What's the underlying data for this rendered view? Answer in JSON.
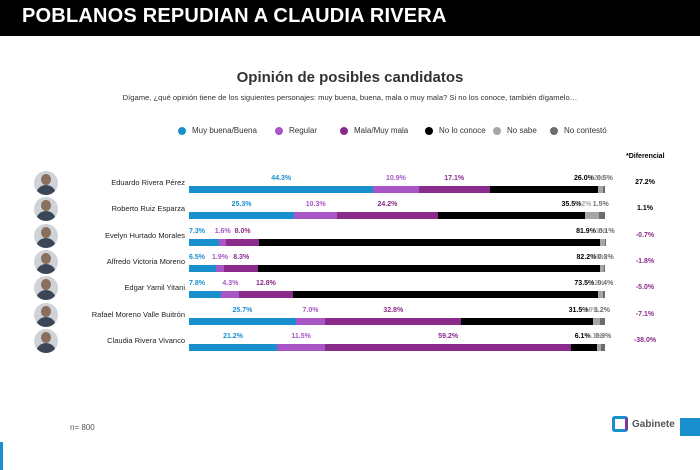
{
  "header": {
    "headline": "POBLANOS REPUDIAN A CLAUDIA RIVERA"
  },
  "chart_data": {
    "type": "bar",
    "title": "Opinión de posibles candidatos",
    "subtitle": "Dígame, ¿qué opinión tiene de los siguientes personajes: muy buena, buena, mala o muy mala? Si no los conoce, también dígamelo…",
    "legend_position": "top",
    "diff_title": "*Diferencial",
    "categories": [
      "Eduardo Rivera Pérez",
      "Roberto Ruiz Esparza",
      "Evelyn Hurtado Morales",
      "Alfredo Victoria Moreno",
      "Edgar Yamil Yitani",
      "Rafael Moreno Valle Buitrón",
      "Claudia Rivera Vivanco"
    ],
    "series": [
      {
        "name": "Muy buena/Buena",
        "color": "#1a8fce",
        "values": [
          44.3,
          25.3,
          7.3,
          6.5,
          7.8,
          25.7,
          21.2
        ],
        "labels": [
          "44.3%",
          "25.3%",
          "7.3%",
          "6.5%",
          "7.8%",
          "25.7%",
          "21.2%"
        ]
      },
      {
        "name": "Regular",
        "color": "#a855c6",
        "values": [
          10.9,
          10.3,
          1.6,
          1.9,
          4.3,
          7.0,
          11.5
        ],
        "labels": [
          "10.9%",
          "10.3%",
          "1.6%",
          "1.9%",
          "4.3%",
          "7.0%",
          "11.5%"
        ]
      },
      {
        "name": "Mala/Muy mala",
        "color": "#8a2a8a",
        "values": [
          17.1,
          24.2,
          8.0,
          8.3,
          12.8,
          32.8,
          59.2
        ],
        "labels": [
          "17.1%",
          "24.2%",
          "8.0%",
          "8.3%",
          "12.8%",
          "32.8%",
          "59.2%"
        ]
      },
      {
        "name": "No lo conoce",
        "color": "#000000",
        "values": [
          26.0,
          35.5,
          81.9,
          82.2,
          73.5,
          31.5,
          6.1
        ],
        "labels": [
          "26.0%",
          "35.5%",
          "81.9%",
          "82.2%",
          "73.5%",
          "31.5%",
          "6.1%"
        ]
      },
      {
        "name": "No sabe",
        "color": "#a6a6a6",
        "values": [
          1.2,
          3.2,
          1.1,
          0.8,
          1.2,
          1.8,
          1.1
        ],
        "labels": [
          "1.2%",
          "3.2%",
          "1.1%",
          "0.8%",
          "1.2%",
          "1.8%",
          "1.1%"
        ]
      },
      {
        "name": "No contestó",
        "color": "#6d6d6d",
        "values": [
          0.5,
          1.5,
          0.1,
          0.3,
          0.4,
          1.2,
          0.9
        ],
        "labels": [
          "0.5%",
          "1.5%",
          "0.1%",
          "0.3%",
          "0.4%",
          "1.2%",
          "0.9%"
        ]
      }
    ],
    "diferencial": [
      {
        "label": "27.2%",
        "color": "#000000"
      },
      {
        "label": "1.1%",
        "color": "#000000"
      },
      {
        "label": "-0.7%",
        "color": "#8a2a8a"
      },
      {
        "label": "-1.8%",
        "color": "#8a2a8a"
      },
      {
        "label": "-5.0%",
        "color": "#8a2a8a"
      },
      {
        "label": "-7.1%",
        "color": "#8a2a8a"
      },
      {
        "label": "-38.0%",
        "color": "#8a2a8a"
      }
    ]
  },
  "footer": {
    "sample": "n= 800",
    "logo_text": "Gabinete"
  }
}
